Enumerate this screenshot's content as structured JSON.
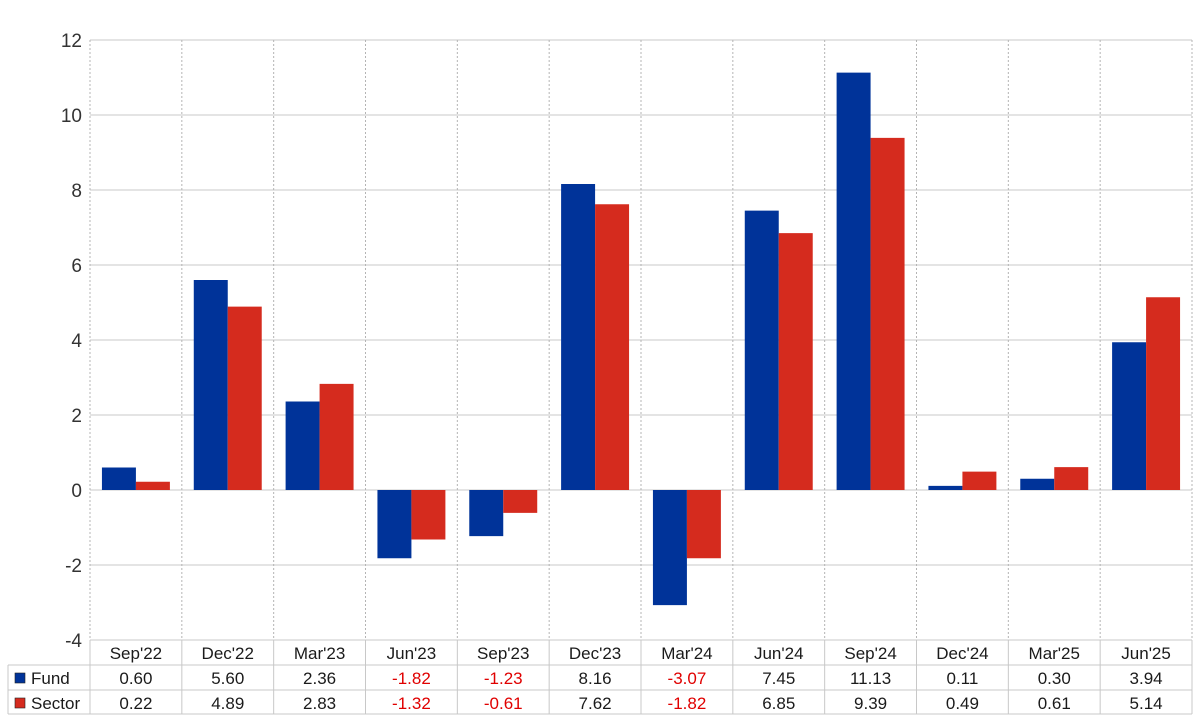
{
  "chart_data": {
    "type": "bar",
    "categories": [
      "Sep'22",
      "Dec'22",
      "Mar'23",
      "Jun'23",
      "Sep'23",
      "Dec'23",
      "Mar'24",
      "Jun'24",
      "Sep'24",
      "Dec'24",
      "Mar'25",
      "Jun'25"
    ],
    "series": [
      {
        "name": "Fund",
        "color": "#003399",
        "values": [
          0.6,
          5.6,
          2.36,
          -1.82,
          -1.23,
          8.16,
          -3.07,
          7.45,
          11.13,
          0.11,
          0.3,
          3.94
        ],
        "labels": [
          "0.60",
          "5.60",
          "2.36",
          "-1.82",
          "-1.23",
          "8.16",
          "-3.07",
          "7.45",
          "11.13",
          "0.11",
          "0.30",
          "3.94"
        ]
      },
      {
        "name": "Sector",
        "color": "#d52b1e",
        "values": [
          0.22,
          4.89,
          2.83,
          -1.32,
          -0.61,
          7.62,
          -1.82,
          6.85,
          9.39,
          0.49,
          0.61,
          5.14
        ],
        "labels": [
          "0.22",
          "4.89",
          "2.83",
          "-1.32",
          "-0.61",
          "7.62",
          "-1.82",
          "6.85",
          "9.39",
          "0.49",
          "0.61",
          "5.14"
        ]
      }
    ],
    "yticks": [
      "12",
      "10",
      "8",
      "6",
      "4",
      "2",
      "0",
      "-2",
      "-4"
    ],
    "ylim": [
      -4,
      12
    ],
    "grid": true,
    "data_table": true,
    "negative_value_color": "#e00000",
    "gridline_color": "#c8c8c8"
  }
}
